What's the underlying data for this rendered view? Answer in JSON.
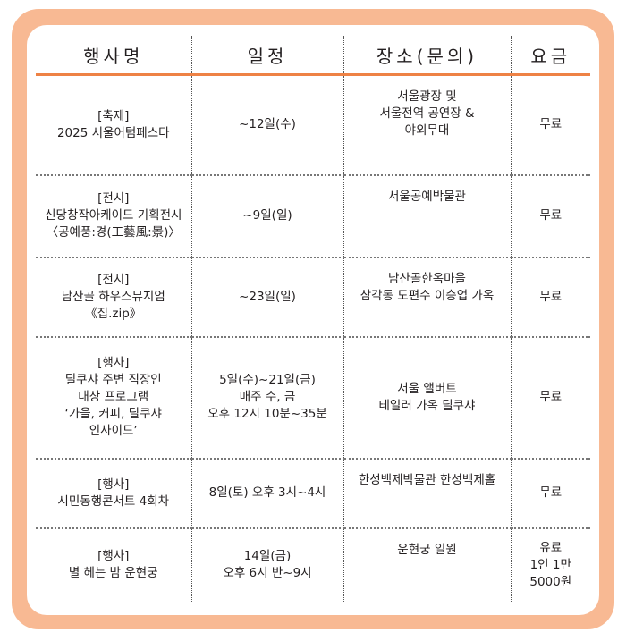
{
  "headers": [
    "행사명",
    "일정",
    "장소(문의)",
    "요금"
  ],
  "rows": [
    {
      "name": [
        "[축제]",
        "2025 서울어텀페스타"
      ],
      "schedule": [
        "~12일(수)"
      ],
      "place": [
        "서울광장 및",
        "서울전역 공연장 &",
        "야외무대"
      ],
      "fee": [
        "무료"
      ]
    },
    {
      "name": [
        "[전시]",
        "신당창작아케이드 기획전시",
        "〈공예풍:경(工藝風:景)〉"
      ],
      "schedule": [
        "~9일(일)"
      ],
      "place": [
        "서울공예박물관"
      ],
      "fee": [
        "무료"
      ]
    },
    {
      "name": [
        "[전시]",
        "남산골 하우스뮤지엄",
        "《집.zip》"
      ],
      "schedule": [
        "~23일(일)"
      ],
      "place": [
        "남산골한옥마을",
        "삼각동 도편수 이승업 가옥"
      ],
      "fee": [
        "무료"
      ]
    },
    {
      "name": [
        "[행사]",
        "딜쿠샤 주변 직장인",
        "대상 프로그램",
        "‘가을, 커피, 딜쿠샤",
        "인사이드’"
      ],
      "schedule": [
        "5일(수)~21일(금)",
        "매주 수, 금",
        "오후 12시 10분~35분"
      ],
      "place": [
        "서울 앨버트",
        "테일러 가옥 딜쿠샤"
      ],
      "fee": [
        "무료"
      ]
    },
    {
      "name": [
        "[행사]",
        "시민동행콘서트 4회차"
      ],
      "schedule": [
        "8일(토) 오후 3시~4시"
      ],
      "place": [
        "한성백제박물관 한성백제홀"
      ],
      "fee": [
        "무료"
      ]
    },
    {
      "name": [
        "[행사]",
        "별 헤는 밤 운현궁"
      ],
      "schedule": [
        "14일(금)",
        "오후 6시 반~9시"
      ],
      "place": [
        "운현궁 일원"
      ],
      "fee": [
        "유료",
        "1인 1만",
        "5000원"
      ]
    }
  ]
}
